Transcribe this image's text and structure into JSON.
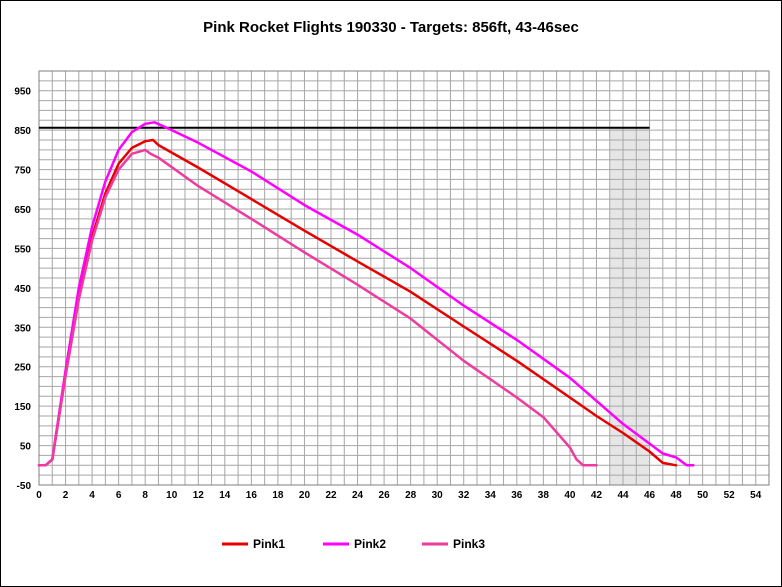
{
  "chart_data": {
    "type": "line",
    "title": "Pink Rocket Flights 190330 - Targets: 856ft, 43-46sec",
    "xlabel": "",
    "ylabel": "",
    "xlim": [
      0,
      55
    ],
    "ylim": [
      -50,
      1000
    ],
    "x_ticks": [
      0,
      2,
      4,
      6,
      8,
      10,
      12,
      14,
      16,
      18,
      20,
      22,
      24,
      26,
      28,
      30,
      32,
      34,
      36,
      38,
      40,
      42,
      44,
      46,
      48,
      50,
      52,
      54
    ],
    "y_ticks": [
      -50,
      50,
      150,
      250,
      350,
      450,
      550,
      650,
      750,
      850,
      950
    ],
    "grid": true,
    "legend_position": "bottom",
    "target_altitude": 856,
    "target_window": [
      43,
      46
    ],
    "target_line_color": "#000000",
    "target_window_color": "#e6e6e6",
    "series": [
      {
        "name": "Pink1",
        "color": "#e60000",
        "points": [
          [
            0,
            0
          ],
          [
            0.5,
            0
          ],
          [
            1,
            15
          ],
          [
            2,
            230
          ],
          [
            3,
            430
          ],
          [
            4,
            580
          ],
          [
            5,
            690
          ],
          [
            6,
            765
          ],
          [
            7,
            805
          ],
          [
            8,
            822
          ],
          [
            8.6,
            825
          ],
          [
            9,
            812
          ],
          [
            12,
            755
          ],
          [
            16,
            675
          ],
          [
            20,
            595
          ],
          [
            24,
            517
          ],
          [
            28,
            440
          ],
          [
            32,
            352
          ],
          [
            36,
            265
          ],
          [
            40,
            172
          ],
          [
            42,
            125
          ],
          [
            44,
            82
          ],
          [
            46,
            35
          ],
          [
            47,
            6
          ],
          [
            48,
            0
          ]
        ]
      },
      {
        "name": "Pink2",
        "color": "#ff00ff",
        "points": [
          [
            0,
            0
          ],
          [
            0.5,
            0
          ],
          [
            1,
            15
          ],
          [
            2,
            240
          ],
          [
            3,
            450
          ],
          [
            4,
            605
          ],
          [
            5,
            720
          ],
          [
            6,
            800
          ],
          [
            7,
            845
          ],
          [
            8,
            866
          ],
          [
            8.7,
            870
          ],
          [
            9.5,
            858
          ],
          [
            12,
            818
          ],
          [
            16,
            745
          ],
          [
            20,
            660
          ],
          [
            24,
            585
          ],
          [
            28,
            500
          ],
          [
            32,
            405
          ],
          [
            36,
            318
          ],
          [
            40,
            222
          ],
          [
            44,
            105
          ],
          [
            46,
            55
          ],
          [
            47,
            30
          ],
          [
            48,
            20
          ],
          [
            48.8,
            0
          ],
          [
            49.3,
            0
          ]
        ]
      },
      {
        "name": "Pink3",
        "color": "#ee3ba0",
        "points": [
          [
            0,
            0
          ],
          [
            0.5,
            0
          ],
          [
            1,
            15
          ],
          [
            2,
            225
          ],
          [
            3,
            420
          ],
          [
            4,
            570
          ],
          [
            5,
            680
          ],
          [
            6,
            750
          ],
          [
            7,
            790
          ],
          [
            8,
            800
          ],
          [
            8.4,
            790
          ],
          [
            9,
            780
          ],
          [
            12,
            708
          ],
          [
            16,
            625
          ],
          [
            20,
            540
          ],
          [
            24,
            458
          ],
          [
            28,
            372
          ],
          [
            32,
            265
          ],
          [
            36,
            172
          ],
          [
            38,
            122
          ],
          [
            40,
            45
          ],
          [
            40.5,
            15
          ],
          [
            41,
            0
          ],
          [
            42,
            0
          ]
        ]
      }
    ]
  }
}
